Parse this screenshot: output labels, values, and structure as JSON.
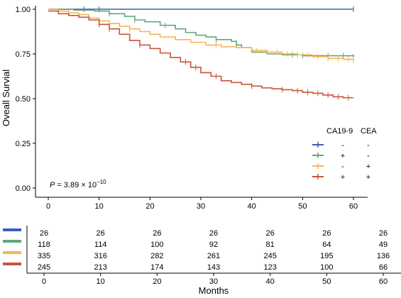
{
  "chart_data": {
    "type": "line",
    "subtype": "kaplan-meier survival curve with number-at-risk table",
    "xlabel": "Months",
    "ylabel": "Oveall Survial",
    "xlim": [
      0,
      60
    ],
    "ylim": [
      0,
      1.0
    ],
    "x_ticks": [
      "0",
      "10",
      "20",
      "30",
      "40",
      "50",
      "60"
    ],
    "y_ticks": [
      "0.00",
      "0.25",
      "0.50",
      "0.75",
      "1.00"
    ],
    "p_value": {
      "prefix": "P",
      "text": " = 3.89 × 10",
      "exponent": "−10"
    },
    "legend": {
      "header_ca199": "CA19-9",
      "header_cea": "CEA",
      "placement": "right-middle",
      "rows": [
        {
          "ca199": "-",
          "cea": "-"
        },
        {
          "ca199": "+",
          "cea": "-"
        },
        {
          "ca199": "-",
          "cea": "+"
        },
        {
          "ca199": "+",
          "cea": "+"
        }
      ]
    },
    "series": [
      {
        "color": "#3a5fb7",
        "points": [
          [
            0,
            1.0
          ],
          [
            60,
            1.0
          ]
        ],
        "censors": [
          7,
          10,
          60
        ]
      },
      {
        "color": "#5fa682",
        "points": [
          [
            0,
            1.0
          ],
          [
            5,
            0.995
          ],
          [
            9,
            0.99
          ],
          [
            12,
            0.975
          ],
          [
            15,
            0.96
          ],
          [
            17,
            0.94
          ],
          [
            19,
            0.93
          ],
          [
            22,
            0.91
          ],
          [
            25,
            0.89
          ],
          [
            27,
            0.87
          ],
          [
            29,
            0.855
          ],
          [
            31,
            0.845
          ],
          [
            33,
            0.83
          ],
          [
            36,
            0.82
          ],
          [
            37,
            0.8
          ],
          [
            38,
            0.785
          ],
          [
            40,
            0.76
          ],
          [
            43,
            0.75
          ],
          [
            46,
            0.745
          ],
          [
            50,
            0.74
          ],
          [
            55,
            0.74
          ],
          [
            60,
            0.735
          ]
        ],
        "censors": [
          12,
          17,
          23,
          33,
          37,
          48,
          50,
          55,
          58,
          60
        ]
      },
      {
        "color": "#f7b553",
        "points": [
          [
            0,
            1.0
          ],
          [
            2,
            0.99
          ],
          [
            4,
            0.98
          ],
          [
            6,
            0.97
          ],
          [
            8,
            0.95
          ],
          [
            10,
            0.935
          ],
          [
            12,
            0.92
          ],
          [
            14,
            0.905
          ],
          [
            16,
            0.89
          ],
          [
            18,
            0.875
          ],
          [
            20,
            0.86
          ],
          [
            22,
            0.845
          ],
          [
            25,
            0.83
          ],
          [
            28,
            0.815
          ],
          [
            31,
            0.8
          ],
          [
            34,
            0.79
          ],
          [
            37,
            0.785
          ],
          [
            40,
            0.77
          ],
          [
            43,
            0.76
          ],
          [
            46,
            0.75
          ],
          [
            49,
            0.745
          ],
          [
            52,
            0.735
          ],
          [
            55,
            0.725
          ],
          [
            58,
            0.72
          ],
          [
            60,
            0.715
          ]
        ],
        "censors": [
          4,
          16,
          33,
          41,
          43,
          45,
          47,
          49,
          51,
          53,
          55,
          57,
          59,
          60
        ]
      },
      {
        "color": "#c9543a",
        "points": [
          [
            0,
            0.99
          ],
          [
            2,
            0.975
          ],
          [
            4,
            0.965
          ],
          [
            6,
            0.955
          ],
          [
            8,
            0.94
          ],
          [
            10,
            0.915
          ],
          [
            12,
            0.89
          ],
          [
            14,
            0.86
          ],
          [
            16,
            0.825
          ],
          [
            18,
            0.8
          ],
          [
            20,
            0.78
          ],
          [
            22,
            0.755
          ],
          [
            24,
            0.73
          ],
          [
            26,
            0.705
          ],
          [
            28,
            0.675
          ],
          [
            30,
            0.645
          ],
          [
            32,
            0.625
          ],
          [
            34,
            0.6
          ],
          [
            36,
            0.59
          ],
          [
            38,
            0.58
          ],
          [
            40,
            0.57
          ],
          [
            42,
            0.56
          ],
          [
            44,
            0.555
          ],
          [
            46,
            0.55
          ],
          [
            48,
            0.545
          ],
          [
            50,
            0.535
          ],
          [
            52,
            0.53
          ],
          [
            54,
            0.52
          ],
          [
            56,
            0.51
          ],
          [
            58,
            0.505
          ],
          [
            60,
            0.505
          ]
        ],
        "censors": [
          10,
          12,
          18,
          27,
          29,
          33,
          40,
          46,
          49,
          51,
          53,
          55,
          57,
          59
        ]
      }
    ],
    "risk_table": {
      "times": [
        0,
        10,
        20,
        30,
        40,
        50,
        60
      ],
      "rows": [
        {
          "color": "#3a5fb7",
          "counts": [
            "26",
            "26",
            "26",
            "26",
            "26",
            "26",
            "26"
          ]
        },
        {
          "color": "#5fa682",
          "counts": [
            "118",
            "114",
            "100",
            "92",
            "81",
            "64",
            "49"
          ]
        },
        {
          "color": "#f7b553",
          "counts": [
            "335",
            "316",
            "282",
            "261",
            "245",
            "195",
            "136"
          ]
        },
        {
          "color": "#c9543a",
          "counts": [
            "245",
            "213",
            "174",
            "143",
            "123",
            "100",
            "66"
          ]
        }
      ],
      "x_ticks": [
        "0",
        "10",
        "20",
        "30",
        "40",
        "50",
        "60"
      ],
      "xlabel": "Months"
    }
  }
}
